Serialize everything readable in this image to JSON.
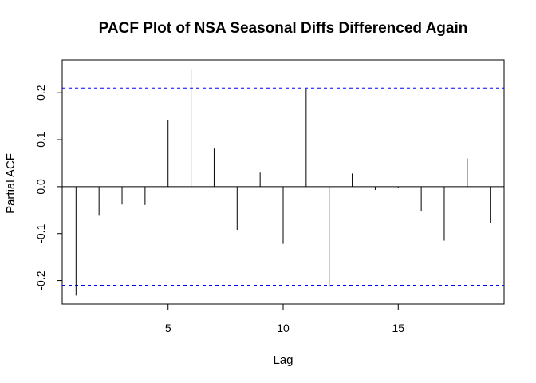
{
  "chart_data": {
    "type": "bar",
    "title": "PACF Plot of NSA Seasonal Diffs Differenced Again",
    "xlabel": "Lag",
    "ylabel": "Partial ACF",
    "xlim": [
      0.4,
      19.6
    ],
    "ylim": [
      -0.25,
      0.27
    ],
    "x_ticks": [
      5,
      10,
      15
    ],
    "y_ticks": [
      -0.2,
      -0.1,
      0.0,
      0.1,
      0.2
    ],
    "y_tick_labels": [
      "-0.2",
      "-0.1",
      "0.0",
      "0.1",
      "0.2"
    ],
    "x_tick_labels": [
      "5",
      "10",
      "15"
    ],
    "lags": [
      1,
      2,
      3,
      4,
      5,
      6,
      7,
      8,
      9,
      10,
      11,
      12,
      13,
      14,
      15,
      16,
      17,
      18,
      19
    ],
    "values": [
      -0.232,
      -0.062,
      -0.038,
      -0.039,
      0.142,
      0.249,
      0.081,
      -0.092,
      0.03,
      -0.122,
      0.209,
      -0.214,
      0.028,
      -0.007,
      -0.003,
      -0.053,
      -0.115,
      0.06,
      -0.078
    ],
    "confidence_bound": 0.21,
    "colors": {
      "spike": "#000000",
      "confidence_line": "#0000ff",
      "zero_line": "#000000"
    },
    "grid": false
  }
}
